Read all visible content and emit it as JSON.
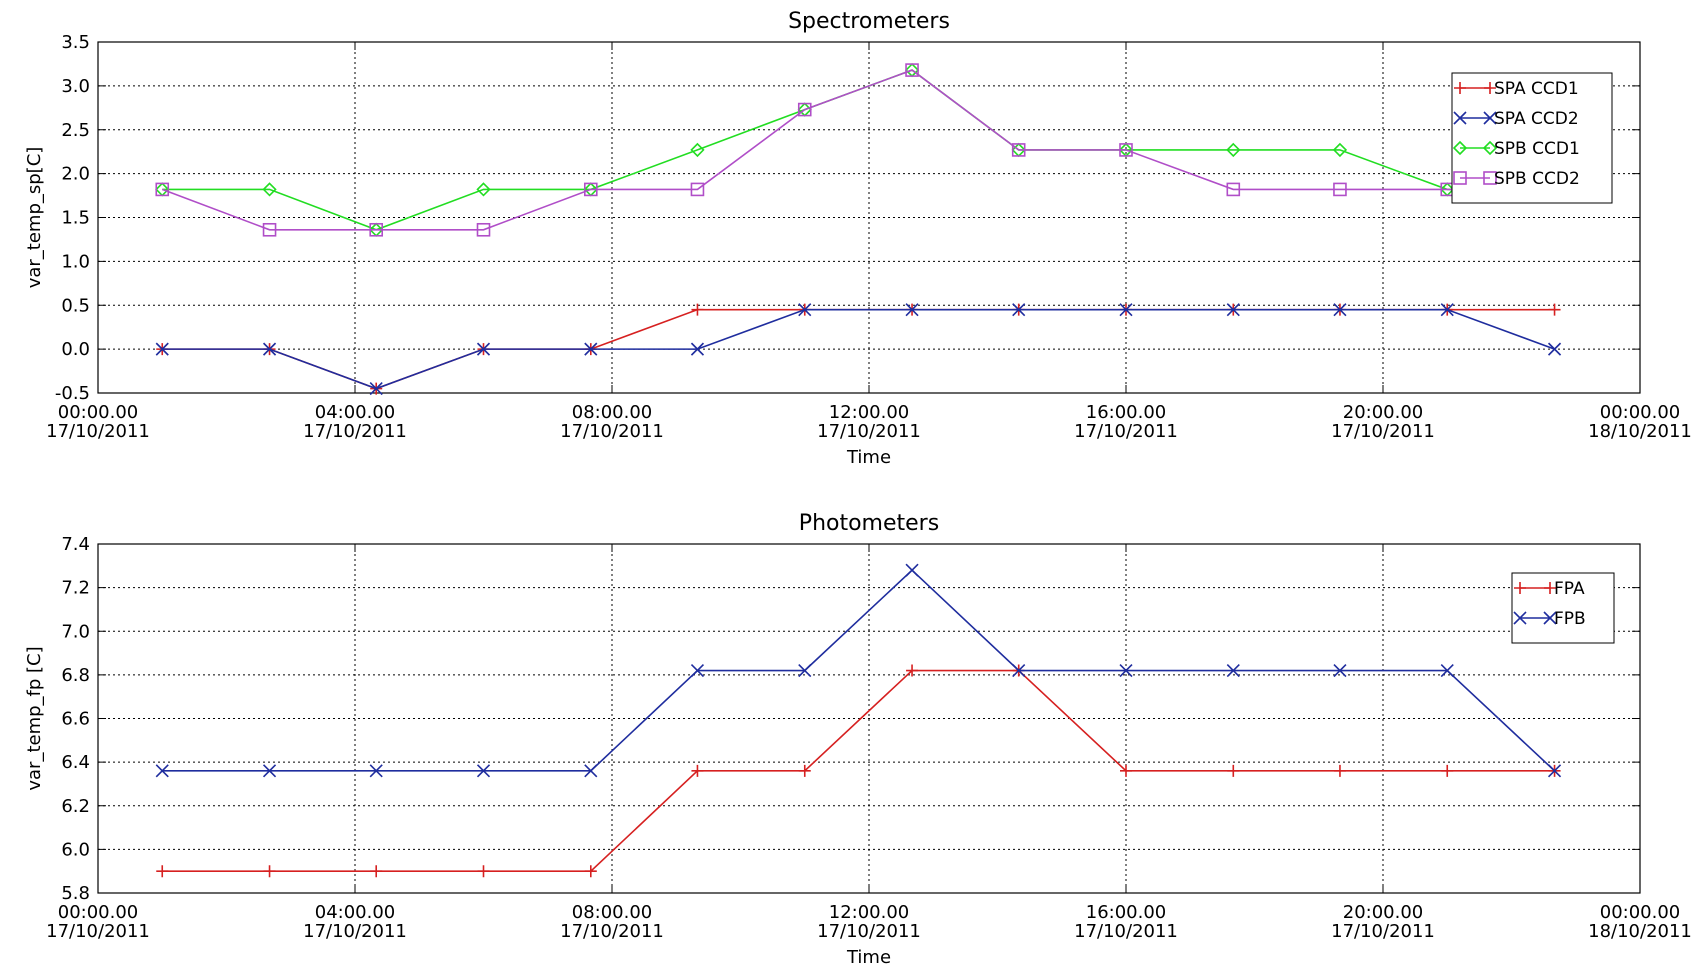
{
  "chart_data": [
    {
      "type": "line",
      "title": "Spectrometers",
      "xlabel": "Time",
      "ylabel": "var_temp_sp[C]",
      "ylim": [
        -0.5,
        3.5
      ],
      "yticks": [
        "3.5",
        "3.0",
        "2.5",
        "2.0",
        "1.5",
        "1.0",
        "0.5",
        "0.0",
        "-0.5"
      ],
      "yticks_values": [
        3.5,
        3.0,
        2.5,
        2.0,
        1.5,
        1.0,
        0.5,
        0.0,
        -0.5
      ],
      "xlim": [
        0,
        24
      ],
      "xtick_hours": [
        0,
        4,
        8,
        12,
        16,
        20,
        24
      ],
      "xticks_time": [
        "00:00.00",
        "04:00.00",
        "08:00.00",
        "12:00.00",
        "16:00.00",
        "20:00.00",
        "00:00.00"
      ],
      "xticks_date": [
        "17/10/2011",
        "17/10/2011",
        "17/10/2011",
        "17/10/2011",
        "17/10/2011",
        "17/10/2011",
        "18/10/2011"
      ],
      "x": [
        1.0,
        2.67,
        4.33,
        6.0,
        7.67,
        9.33,
        11.0,
        12.67,
        14.33,
        16.0,
        17.67,
        19.33,
        21.0,
        22.67
      ],
      "grid": true,
      "legend_position": "top-right",
      "series": [
        {
          "name": "SPA CCD1",
          "color": "#d62020",
          "marker": "plus",
          "values": [
            0.0,
            0.0,
            -0.45,
            0.0,
            0.0,
            0.45,
            0.45,
            0.45,
            0.45,
            0.45,
            0.45,
            0.45,
            0.45,
            0.45
          ]
        },
        {
          "name": "SPA CCD2",
          "color": "#1f2d9e",
          "marker": "cross",
          "values": [
            0.0,
            0.0,
            -0.45,
            0.0,
            0.0,
            0.0,
            0.45,
            0.45,
            0.45,
            0.45,
            0.45,
            0.45,
            0.45,
            0.0
          ]
        },
        {
          "name": "SPB CCD1",
          "color": "#22dd22",
          "marker": "diamond",
          "values": [
            1.82,
            1.82,
            1.36,
            1.82,
            1.82,
            2.27,
            2.73,
            3.18,
            2.27,
            2.27,
            2.27,
            2.27,
            1.82,
            1.82
          ]
        },
        {
          "name": "SPB CCD2",
          "color": "#b04ec8",
          "marker": "square",
          "values": [
            1.82,
            1.36,
            1.36,
            1.36,
            1.82,
            1.82,
            2.73,
            3.18,
            2.27,
            2.27,
            1.82,
            1.82,
            1.82,
            1.82
          ]
        }
      ]
    },
    {
      "type": "line",
      "title": "Photometers",
      "xlabel": "Time",
      "ylabel": "var_temp_fp [C]",
      "ylim": [
        5.8,
        7.4
      ],
      "yticks": [
        "7.4",
        "7.2",
        "7.0",
        "6.8",
        "6.6",
        "6.4",
        "6.2",
        "6.0",
        "5.8"
      ],
      "yticks_values": [
        7.4,
        7.2,
        7.0,
        6.8,
        6.6,
        6.4,
        6.2,
        6.0,
        5.8
      ],
      "xlim": [
        0,
        24
      ],
      "xtick_hours": [
        0,
        4,
        8,
        12,
        16,
        20,
        24
      ],
      "xticks_time": [
        "00:00.00",
        "04:00.00",
        "08:00.00",
        "12:00.00",
        "16:00.00",
        "20:00.00",
        "00:00.00"
      ],
      "xticks_date": [
        "17/10/2011",
        "17/10/2011",
        "17/10/2011",
        "17/10/2011",
        "17/10/2011",
        "17/10/2011",
        "18/10/2011"
      ],
      "x": [
        1.0,
        2.67,
        4.33,
        6.0,
        7.67,
        9.33,
        11.0,
        12.67,
        14.33,
        16.0,
        17.67,
        19.33,
        21.0,
        22.67
      ],
      "grid": true,
      "legend_position": "top-right",
      "series": [
        {
          "name": "FPA",
          "color": "#d62020",
          "marker": "plus",
          "values": [
            5.9,
            5.9,
            5.9,
            5.9,
            5.9,
            6.36,
            6.36,
            6.82,
            6.82,
            6.36,
            6.36,
            6.36,
            6.36,
            6.36
          ]
        },
        {
          "name": "FPB",
          "color": "#1f2d9e",
          "marker": "cross",
          "values": [
            6.36,
            6.36,
            6.36,
            6.36,
            6.36,
            6.82,
            6.82,
            7.28,
            6.82,
            6.82,
            6.82,
            6.82,
            6.82,
            6.36
          ]
        }
      ]
    }
  ]
}
